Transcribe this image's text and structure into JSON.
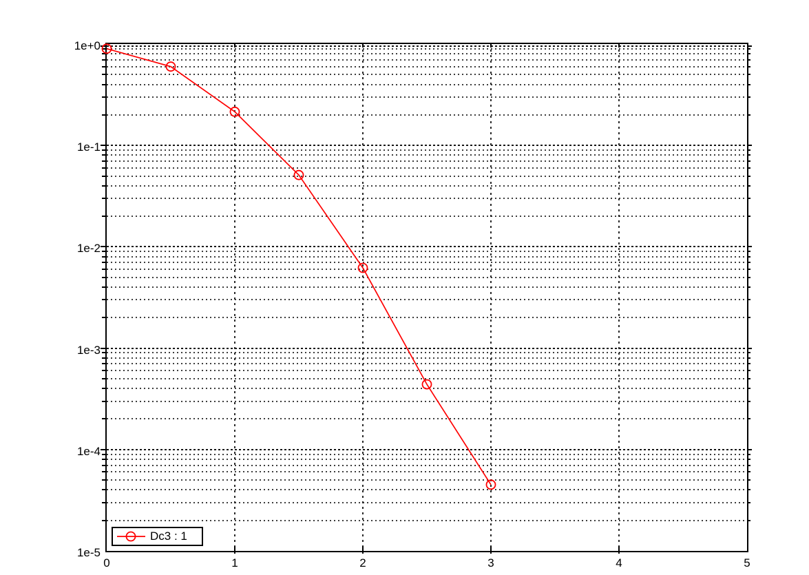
{
  "figure": {
    "background": "#ffffff"
  },
  "chart_data": {
    "type": "line",
    "title": "",
    "xlabel": "",
    "ylabel": "",
    "x_axis": {
      "scale": "linear",
      "min": 0,
      "max": 5,
      "tick_values": [
        0,
        1,
        2,
        3,
        4,
        5
      ],
      "tick_labels": [
        "0",
        "1",
        "2",
        "3",
        "4",
        "5"
      ]
    },
    "y_axis": {
      "scale": "log",
      "min": 1e-05,
      "max": 1,
      "tick_values": [
        1,
        0.1,
        0.01,
        0.001,
        0.0001,
        1e-05
      ],
      "tick_labels": [
        "1e+0",
        "1e-1",
        "1e-2",
        "1e-3",
        "1e-4",
        "1e-5"
      ]
    },
    "grid": {
      "horizontal": "dotted lines at every log minor and major position",
      "vertical": "dotted lines at integer x ticks",
      "major_color": "#141414",
      "minor_color": "#3c3c3c"
    },
    "axis_color": "#000000",
    "text_color": "#000000",
    "legend": {
      "label": "Dc3 : 1",
      "position": "bottom-left",
      "border_color": "#000000",
      "background": "#ffffff"
    },
    "series": [
      {
        "name": "Dc3 : 1",
        "color": "#ff0000",
        "marker": "open-circle",
        "marker_radius": 6.5,
        "points": [
          {
            "x": 0,
            "y": 0.9
          },
          {
            "x": 0.5,
            "y": 0.6
          },
          {
            "x": 1,
            "y": 0.215
          },
          {
            "x": 1.5,
            "y": 0.051
          },
          {
            "x": 2,
            "y": 0.0062
          },
          {
            "x": 2.5,
            "y": 0.00044
          },
          {
            "x": 3,
            "y": 4.5e-05
          }
        ]
      }
    ]
  }
}
